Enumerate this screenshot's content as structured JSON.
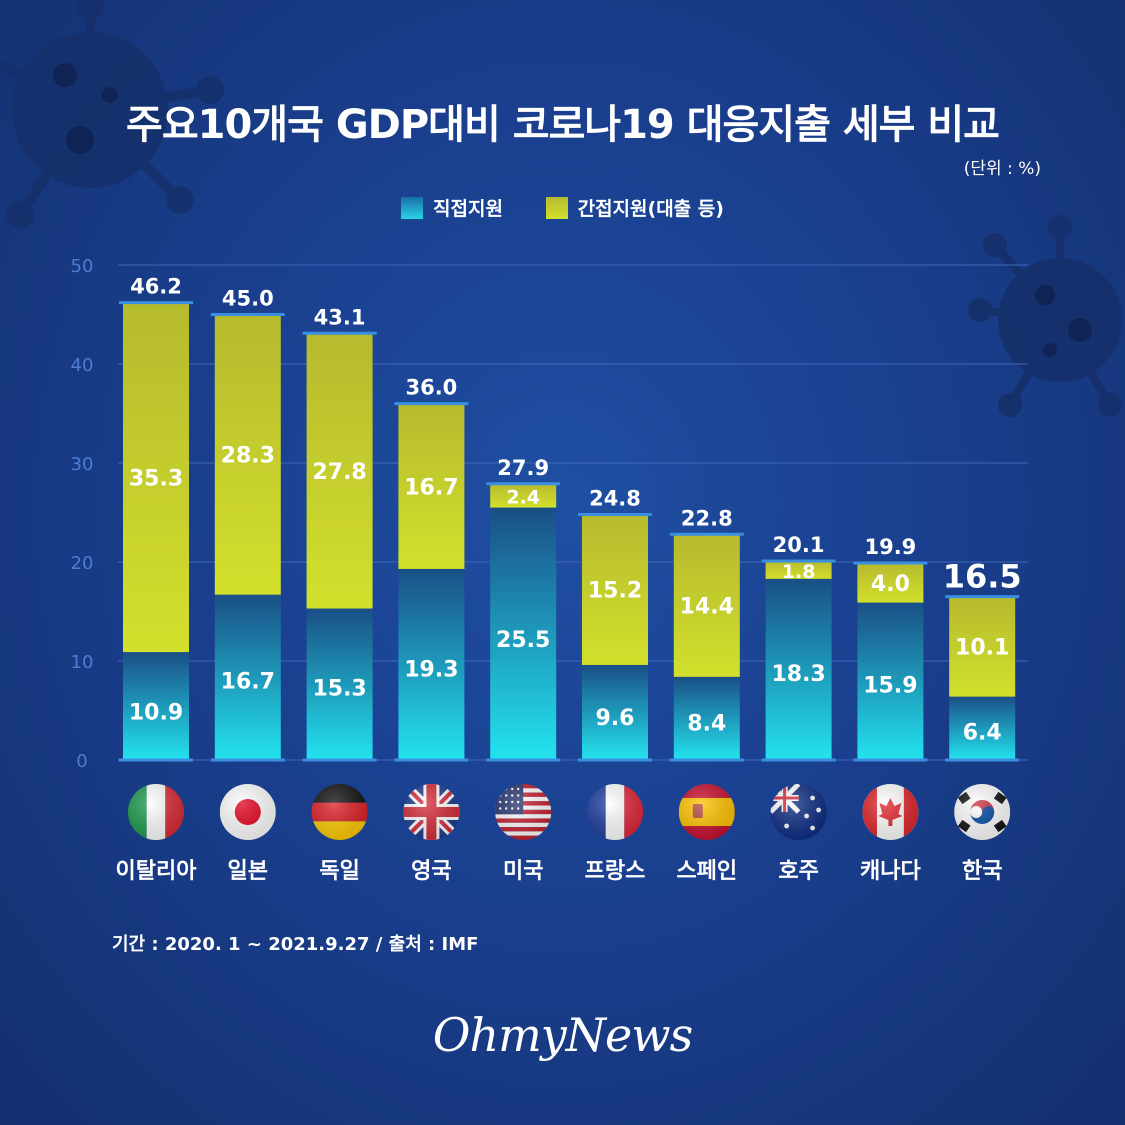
{
  "title": "주요10개국 GDP대비 코로나19 대응지출 세부 비교",
  "unit_label": "(단위 : %)",
  "legend": [
    {
      "label": "직접지원",
      "color": "#2ad3e6"
    },
    {
      "label": "간접지원(대출 등)",
      "color": "#c7d52e"
    }
  ],
  "footnote": "기간 : 2020. 1 ~ 2021.9.27 / 출처 : IMF",
  "logo": "OhmyNews",
  "colors": {
    "direct_top": "#1a4f86",
    "direct_bottom": "#23e3ee",
    "indirect_top": "#b6ba2e",
    "indirect_bottom": "#d2e02c",
    "cap": "#3a8fe0"
  },
  "chart_data": {
    "type": "bar",
    "stacked": true,
    "categories": [
      "이탈리아",
      "일본",
      "독일",
      "영국",
      "미국",
      "프랑스",
      "스페인",
      "호주",
      "캐나다",
      "한국"
    ],
    "flags": [
      "italy-flag-icon",
      "japan-flag-icon",
      "germany-flag-icon",
      "uk-flag-icon",
      "usa-flag-icon",
      "france-flag-icon",
      "spain-flag-icon",
      "australia-flag-icon",
      "canada-flag-icon",
      "korea-flag-icon"
    ],
    "series": [
      {
        "name": "직접지원",
        "values": [
          10.9,
          16.7,
          15.3,
          19.3,
          25.5,
          9.6,
          8.4,
          18.3,
          15.9,
          6.4
        ]
      },
      {
        "name": "간접지원(대출 등)",
        "values": [
          35.3,
          28.3,
          27.8,
          16.7,
          2.4,
          15.2,
          14.4,
          1.8,
          4.0,
          10.1
        ]
      }
    ],
    "totals": [
      "46.2",
      "45.0",
      "43.1",
      "36.0",
      "27.9",
      "24.8",
      "22.8",
      "20.1",
      "19.9",
      "16.5"
    ],
    "direct_labels": [
      "10.9",
      "16.7",
      "15.3",
      "19.3",
      "25.5",
      "9.6",
      "8.4",
      "18.3",
      "15.9",
      "6.4"
    ],
    "indirect_labels": [
      "35.3",
      "28.3",
      "27.8",
      "16.7",
      "2.4",
      "15.2",
      "14.4",
      "1.8",
      "4.0",
      "10.1"
    ],
    "yticks": [
      "0",
      "10",
      "20",
      "30",
      "40",
      "50"
    ],
    "ylim": [
      0,
      50
    ],
    "grid": true,
    "legend_position": "top-center"
  }
}
